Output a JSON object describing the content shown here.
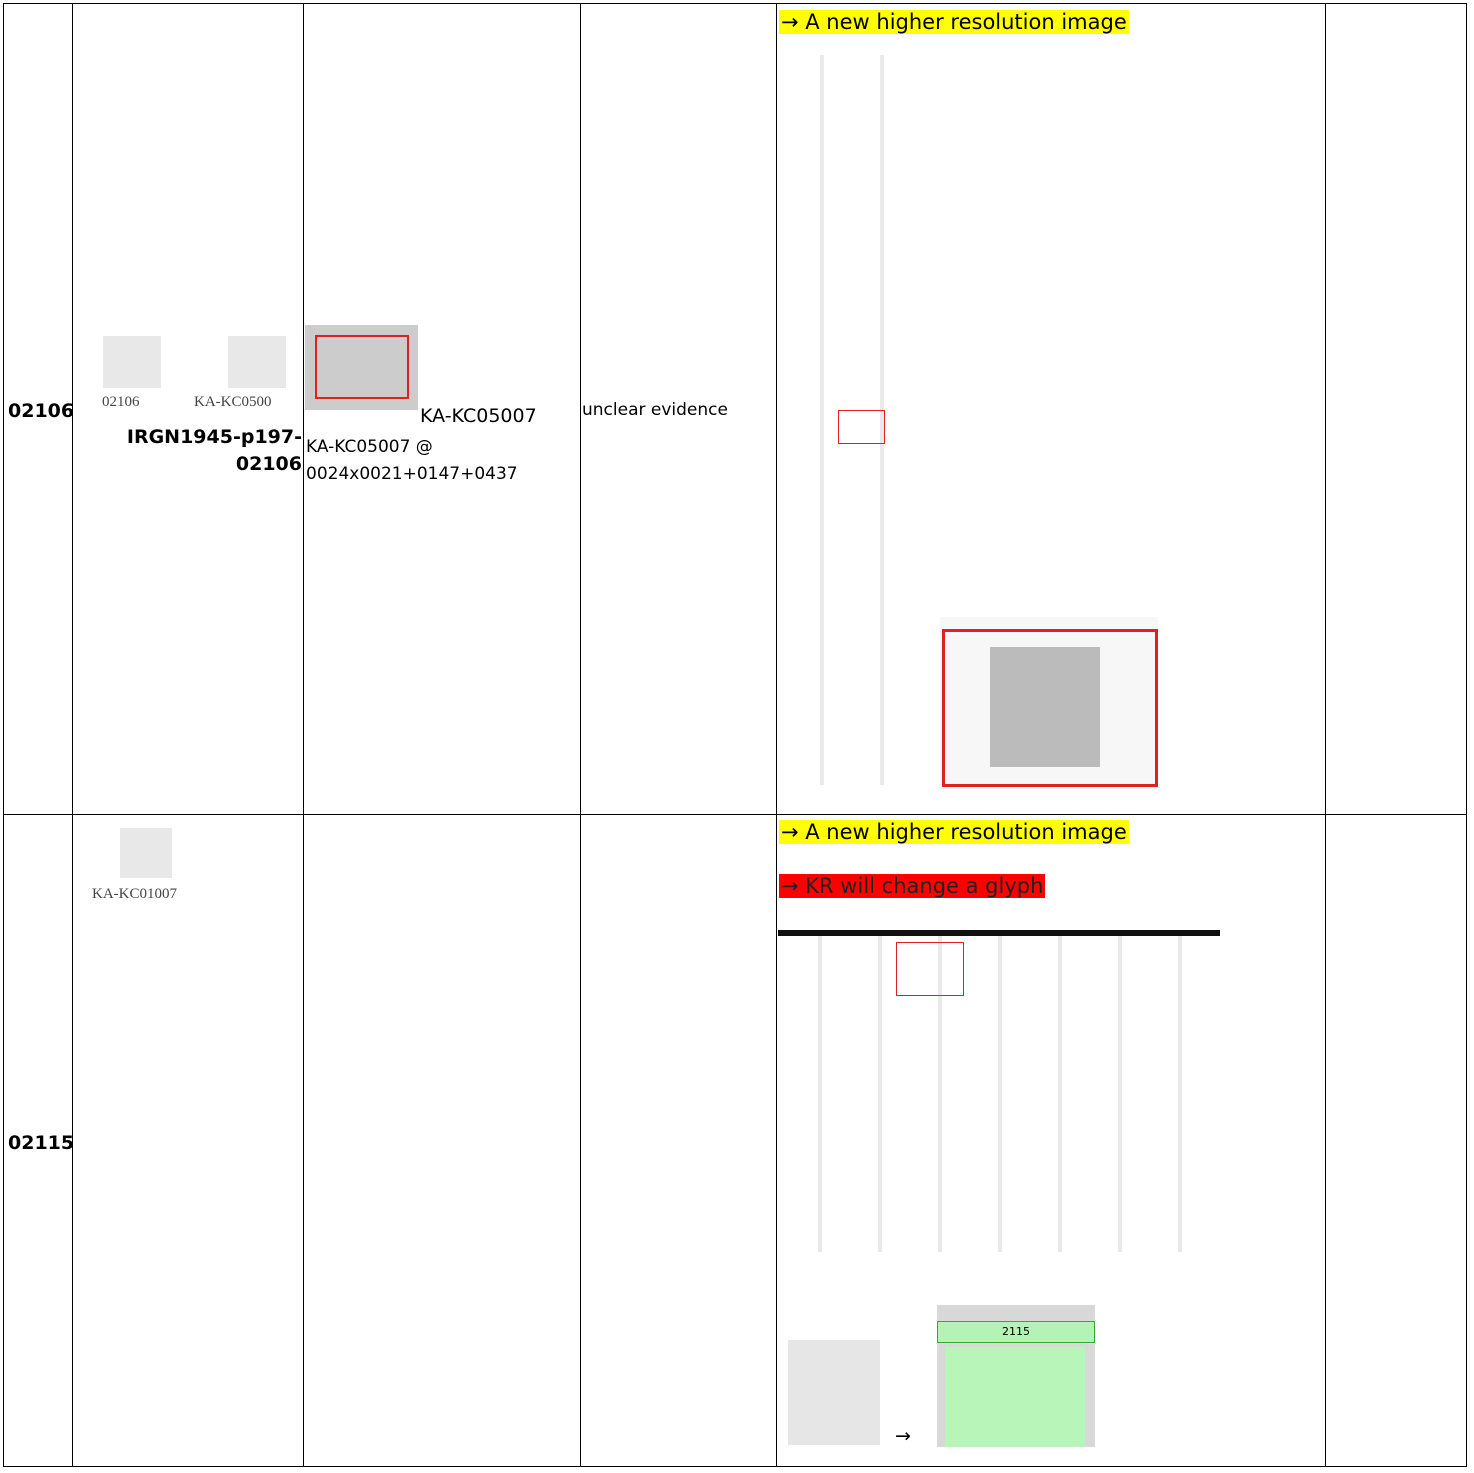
{
  "rows": [
    {
      "id": "02106",
      "glyph_labels": [
        "02106",
        "KA-KC0500"
      ],
      "source": "IRGN1945-p197-02106",
      "evidence_caption": "KA-KC05007",
      "evidence_ref": "KA-KC05007 @ 0024x0021+0147+0437",
      "comment": "unclear evidence",
      "notes": [
        "→ A new higher resolution image"
      ]
    },
    {
      "id": "02115",
      "glyph_labels": [
        "KA-KC01007"
      ],
      "notes": [
        "→ A new higher resolution image",
        "→ KR will change a glyph"
      ],
      "arrow": "→",
      "image_label": "2115"
    }
  ]
}
